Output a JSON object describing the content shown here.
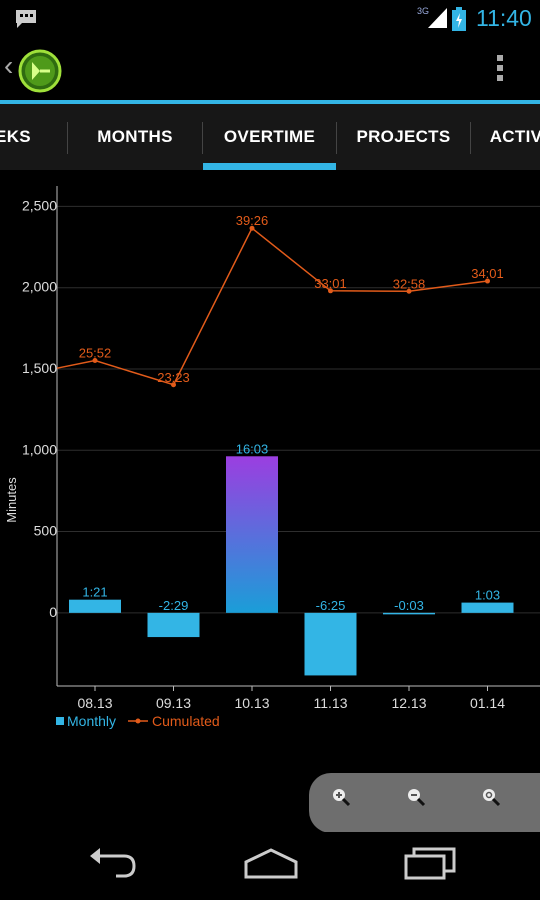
{
  "status_bar": {
    "time": "11:40",
    "network": "3G"
  },
  "tabs": [
    {
      "label": "WEEKS",
      "selected": false
    },
    {
      "label": "MONTHS",
      "selected": false
    },
    {
      "label": "OVERTIME",
      "selected": true
    },
    {
      "label": "PROJECTS",
      "selected": false
    },
    {
      "label": "ACTIVITIES",
      "selected": false
    }
  ],
  "colors": {
    "accent": "#33b5e5",
    "cumulated": "#e25b1a",
    "bar_gradient_top": "#9b3ee0"
  },
  "icons": {
    "status": [
      "message-icon",
      "signal-icon",
      "battery-icon"
    ],
    "action": [
      "back-chevron-icon",
      "app-logo-icon",
      "overflow-menu-icon"
    ],
    "zoom": [
      "zoom-in-icon",
      "zoom-out-icon",
      "zoom-reset-icon"
    ],
    "nav": [
      "back-nav-icon",
      "home-nav-icon",
      "recents-nav-icon"
    ]
  },
  "chart_data": {
    "type": "bar",
    "categories": [
      "08.13",
      "09.13",
      "10.13",
      "11.13",
      "12.13",
      "01.14"
    ],
    "ylabel": "Minutes",
    "ylim": [
      -450,
      2550
    ],
    "yticks": [
      0,
      500,
      1000,
      1500,
      2000,
      2500
    ],
    "ytick_labels": [
      "0",
      "500",
      "1,000",
      "1,500",
      "2,000",
      "2,500"
    ],
    "grid": true,
    "legend_position": "bottom-left",
    "series": [
      {
        "name": "Monthly",
        "mark": "bar",
        "values": [
          81,
          -149,
          963,
          -385,
          -3,
          63
        ],
        "labels": [
          "1:21",
          "-2:29",
          "16:03",
          "-6:25",
          "-0:03",
          "1:03"
        ]
      },
      {
        "name": "Cumulated",
        "mark": "line",
        "values": [
          1552,
          1403,
          2366,
          1981,
          1978,
          2041
        ],
        "labels": [
          "25:52",
          "23:23",
          "39:26",
          "33:01",
          "32:58",
          "34:01"
        ]
      }
    ]
  }
}
